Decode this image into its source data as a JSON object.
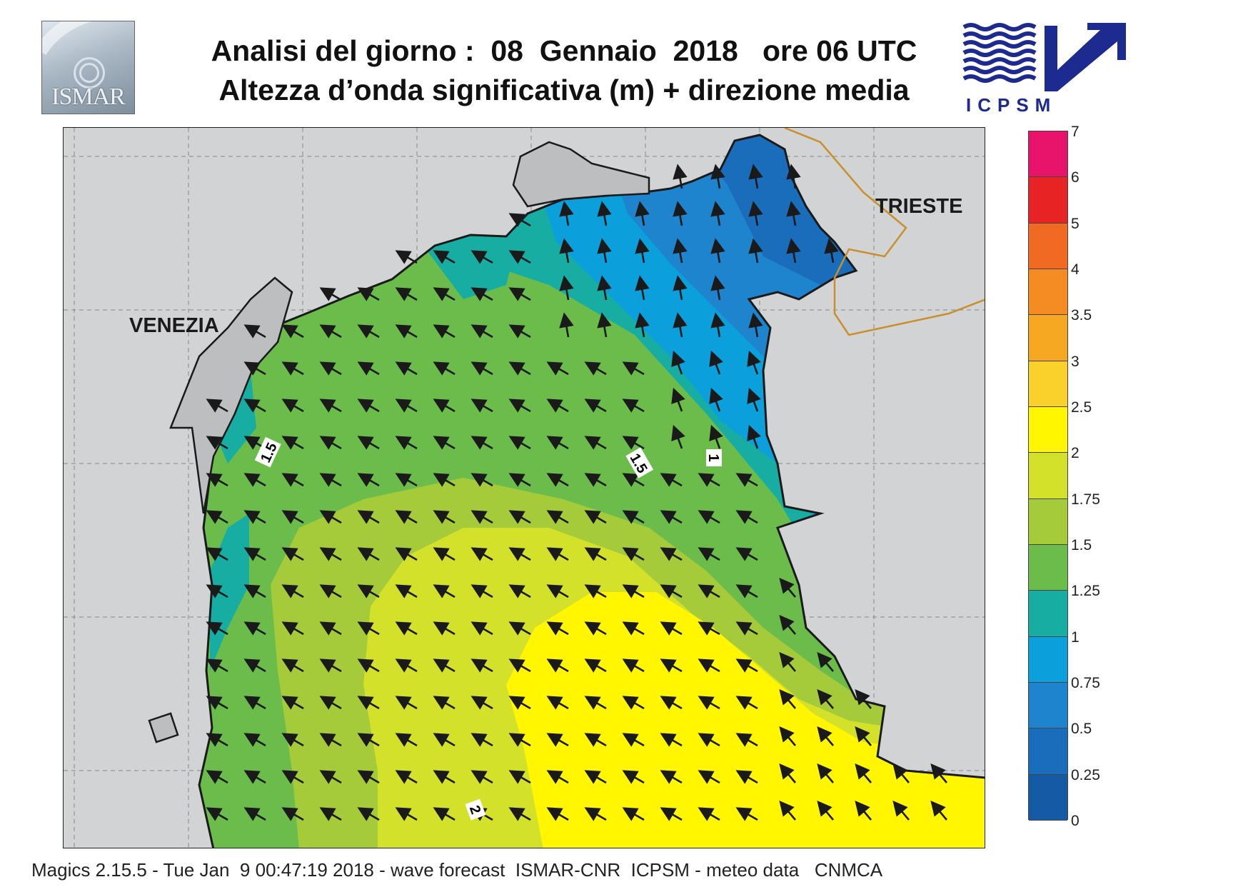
{
  "header": {
    "title_line1": "Analisi del giorno :  08  Gennaio  2018   ore 06 UTC",
    "title_line2": "Altezza d’onda significativa (m) + direzione media"
  },
  "logos": {
    "left": {
      "label": "ISMAR",
      "icon": "ismar-logo"
    },
    "right": {
      "label": "ICPSM",
      "icon": "icpsm-wave-arrow-logo",
      "color": "#1d2a8f"
    }
  },
  "map": {
    "places": {
      "venezia": "VENEZIA",
      "trieste": "TRIESTE"
    },
    "contour_labels": [
      "1.5",
      "1.5",
      "1",
      "2"
    ],
    "land_color": "#d1d3d4",
    "coast_color": "#1a1a1a",
    "border_color": "#c8902d"
  },
  "legend": {
    "levels": [
      "7",
      "6",
      "5",
      "4",
      "3.5",
      "3",
      "2.5",
      "2",
      "1.75",
      "1.5",
      "1.25",
      "1",
      "0.75",
      "0.5",
      "0.25",
      "0"
    ],
    "colors": [
      "#e8146c",
      "#e82323",
      "#f06a23",
      "#f58b23",
      "#f7a823",
      "#f9d12a",
      "#fff600",
      "#d4e12b",
      "#a5cb3b",
      "#6cbc4c",
      "#18ada2",
      "#0ba0dc",
      "#1e84cd",
      "#1a6dbb",
      "#155aa4"
    ]
  },
  "footer": {
    "text": "Magics 2.15.5 - Tue Jan  9 00:47:19 2018 - wave forecast  ISMAR-CNR  ICPSM - meteo data   CNMCA"
  }
}
